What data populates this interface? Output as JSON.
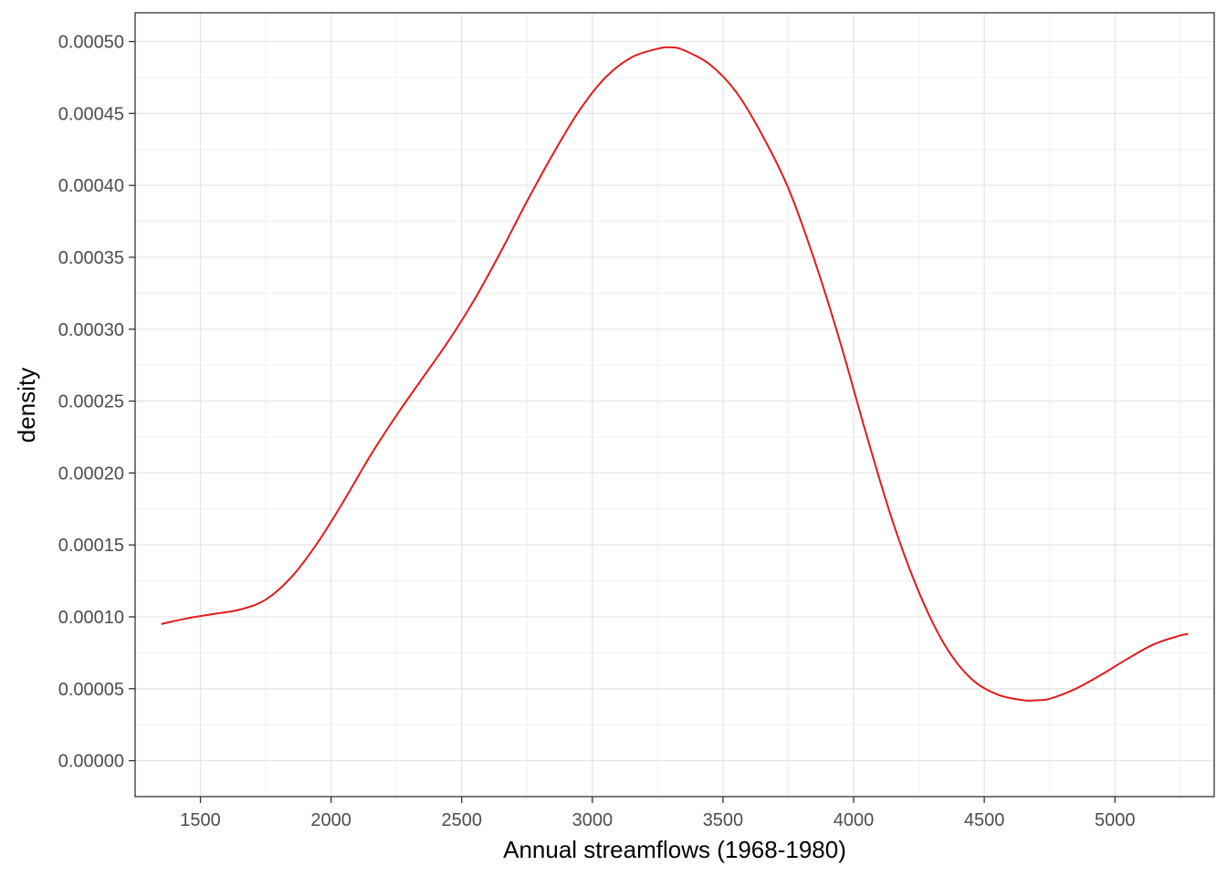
{
  "chart_data": {
    "type": "line",
    "title": "",
    "xlabel": "Annual streamflows (1968-1980)",
    "ylabel": "density",
    "xlim": [
      1250,
      5380
    ],
    "ylim": [
      -2.5e-05,
      0.00052
    ],
    "x_ticks": [
      1500,
      2000,
      2500,
      3000,
      3500,
      4000,
      4500,
      5000
    ],
    "x_tick_labels": [
      "1500",
      "2000",
      "2500",
      "3000",
      "3500",
      "4000",
      "4500",
      "5000"
    ],
    "y_ticks": [
      0,
      5e-05,
      0.0001,
      0.00015,
      0.0002,
      0.00025,
      0.0003,
      0.00035,
      0.0004,
      0.00045,
      0.0005
    ],
    "y_tick_labels": [
      "0.00000",
      "0.00005",
      "0.00010",
      "0.00015",
      "0.00020",
      "0.00025",
      "0.00030",
      "0.00035",
      "0.00040",
      "0.00045",
      "0.00050"
    ],
    "grid": true,
    "line_color": "#e31a1c",
    "series": [
      {
        "x": [
          1350,
          1450,
          1550,
          1650,
          1750,
          1850,
          1950,
          2050,
          2150,
          2250,
          2350,
          2450,
          2550,
          2650,
          2750,
          2850,
          2950,
          3050,
          3150,
          3250,
          3300,
          3350,
          3450,
          3550,
          3650,
          3750,
          3850,
          3950,
          4050,
          4150,
          4250,
          4350,
          4450,
          4550,
          4650,
          4700,
          4750,
          4850,
          4950,
          5050,
          5150,
          5250,
          5280
        ],
        "y": [
          9.5e-05,
          9.9e-05,
          0.000102,
          0.000105,
          0.000112,
          0.000128,
          0.000152,
          0.000181,
          0.000212,
          0.00024,
          0.000266,
          0.000292,
          0.000321,
          0.000354,
          0.000389,
          0.000422,
          0.000452,
          0.000475,
          0.000489,
          0.000495,
          0.000496,
          0.000494,
          0.000484,
          0.000465,
          0.000435,
          0.000398,
          0.000348,
          0.00029,
          0.000226,
          0.000166,
          0.000117,
          8e-05,
          5.7e-05,
          4.6e-05,
          4.2e-05,
          4.2e-05,
          4.3e-05,
          5e-05,
          6e-05,
          7.1e-05,
          8.1e-05,
          8.7e-05,
          8.8e-05
        ]
      }
    ]
  }
}
